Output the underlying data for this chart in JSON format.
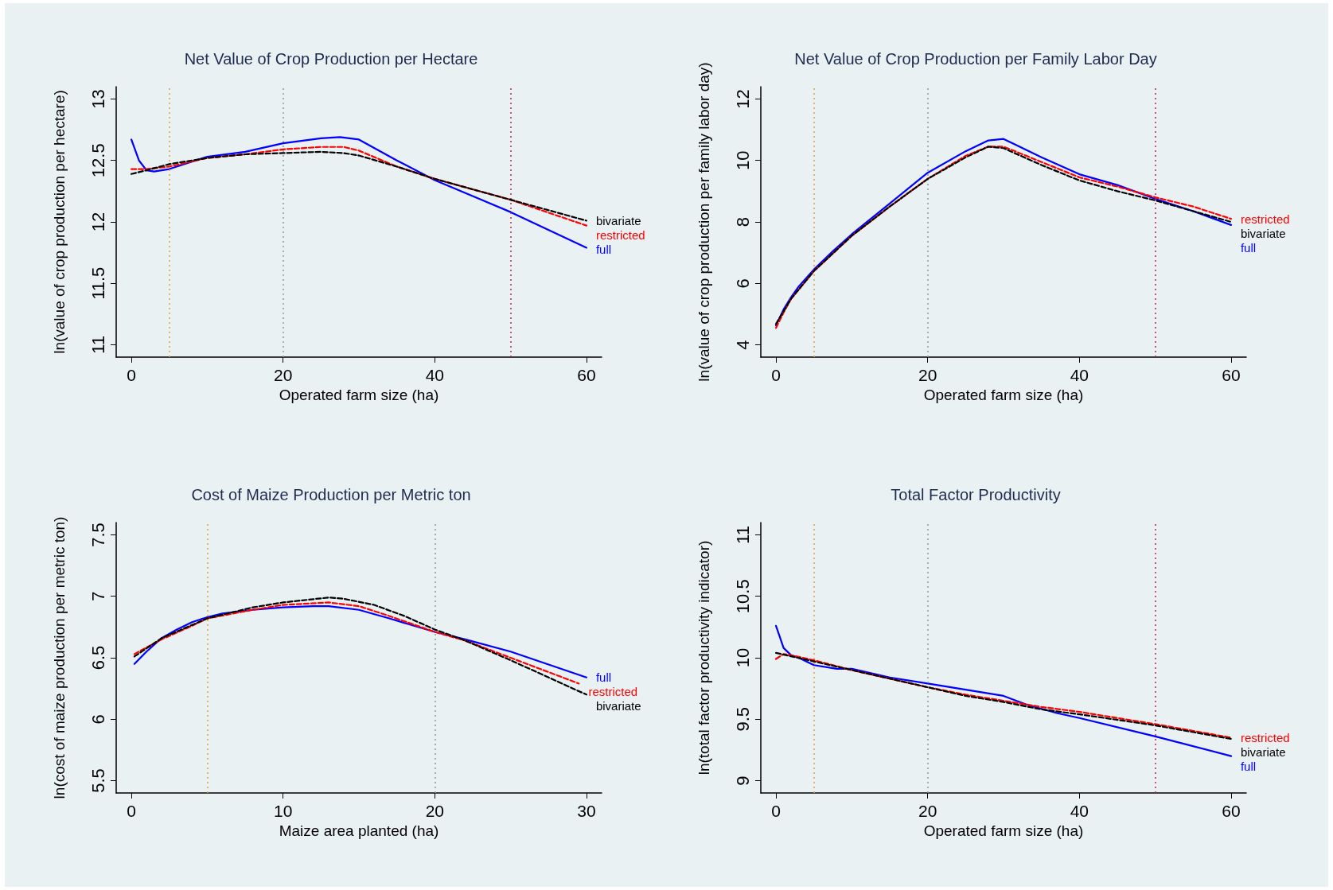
{
  "chart_data": [
    {
      "type": "line",
      "title": "Net Value of Crop Production per Hectare",
      "xlabel": "Operated farm size (ha)",
      "ylabel": "ln(value of crop production per hectare)",
      "xlim": [
        -2,
        62
      ],
      "xticks": [
        0,
        20,
        40,
        60
      ],
      "ylim": [
        10.9,
        13.1
      ],
      "yticks": [
        11,
        11.5,
        12,
        12.5,
        13
      ],
      "series": [
        {
          "name": "full",
          "color": "#0000ff",
          "line_style": "solid",
          "x": [
            0,
            1,
            2,
            3,
            5,
            8,
            10,
            15,
            20,
            25,
            27.5,
            30,
            35,
            40,
            50,
            60
          ],
          "values": [
            12.67,
            12.5,
            12.42,
            12.41,
            12.43,
            12.49,
            12.53,
            12.57,
            12.64,
            12.68,
            12.69,
            12.67,
            12.5,
            12.34,
            12.08,
            11.79
          ]
        },
        {
          "name": "restricted",
          "color": "#ff0000",
          "line_style": "dashed",
          "x": [
            0,
            2,
            5,
            10,
            15,
            20,
            25,
            28,
            30,
            35,
            40,
            50,
            60
          ],
          "values": [
            12.43,
            12.43,
            12.45,
            12.52,
            12.55,
            12.59,
            12.61,
            12.61,
            12.58,
            12.45,
            12.35,
            12.18,
            11.97
          ]
        },
        {
          "name": "bivariate",
          "color": "#000000",
          "line_style": "dashed",
          "x": [
            0,
            2,
            5,
            10,
            15,
            20,
            25,
            28,
            30,
            35,
            40,
            50,
            60
          ],
          "values": [
            12.39,
            12.42,
            12.47,
            12.52,
            12.55,
            12.56,
            12.57,
            12.56,
            12.54,
            12.45,
            12.35,
            12.18,
            12.01
          ]
        }
      ],
      "ref_lines": [
        {
          "axis": "x",
          "value": 5,
          "color": "#e8a040",
          "line_style": "dotted"
        },
        {
          "axis": "x",
          "value": 20,
          "color": "#8c9a9a",
          "line_style": "dotted"
        },
        {
          "axis": "x",
          "value": 50,
          "color": "#c0204a",
          "line_style": "dotted"
        }
      ]
    },
    {
      "type": "line",
      "title": "Net Value of Crop Production per Family Labor Day",
      "xlabel": "Operated farm size (ha)",
      "ylabel": "ln(value of crop production per family labor day)",
      "xlim": [
        -2,
        62
      ],
      "xticks": [
        0,
        20,
        40,
        60
      ],
      "ylim": [
        3.6,
        12.4
      ],
      "yticks": [
        4,
        6,
        8,
        10,
        12
      ],
      "series": [
        {
          "name": "full",
          "color": "#0000ff",
          "line_style": "solid",
          "x": [
            0,
            1,
            2,
            3,
            5,
            7.5,
            10,
            15,
            20,
            25,
            28,
            30,
            35,
            40,
            45,
            50,
            55,
            60
          ],
          "values": [
            4.63,
            5.15,
            5.55,
            5.9,
            6.45,
            7.05,
            7.6,
            8.6,
            9.6,
            10.3,
            10.65,
            10.7,
            10.1,
            9.55,
            9.2,
            8.75,
            8.35,
            7.9
          ]
        },
        {
          "name": "restricted",
          "color": "#ff0000",
          "line_style": "dashed",
          "x": [
            0,
            1,
            2,
            5,
            10,
            15,
            20,
            25,
            28,
            30,
            35,
            40,
            45,
            50,
            55,
            60
          ],
          "values": [
            4.55,
            5.05,
            5.5,
            6.4,
            7.55,
            8.5,
            9.4,
            10.15,
            10.45,
            10.45,
            9.95,
            9.45,
            9.15,
            8.8,
            8.5,
            8.1
          ]
        },
        {
          "name": "bivariate",
          "color": "#000000",
          "line_style": "dashed",
          "x": [
            0,
            2,
            5,
            10,
            15,
            20,
            25,
            28,
            30,
            35,
            40,
            45,
            50,
            55,
            60
          ],
          "values": [
            4.68,
            5.5,
            6.4,
            7.55,
            8.5,
            9.4,
            10.1,
            10.45,
            10.4,
            9.85,
            9.35,
            9.0,
            8.7,
            8.35,
            8.0
          ]
        }
      ],
      "ref_lines": [
        {
          "axis": "x",
          "value": 5,
          "color": "#e8a040",
          "line_style": "dotted"
        },
        {
          "axis": "x",
          "value": 20,
          "color": "#8c9a9a",
          "line_style": "dotted"
        },
        {
          "axis": "x",
          "value": 50,
          "color": "#c0204a",
          "line_style": "dotted"
        }
      ]
    },
    {
      "type": "line",
      "title": "Cost of Maize Production per Metric ton",
      "xlabel": "Maize area planted (ha)",
      "ylabel": "ln(cost of maize production per metric ton)",
      "xlim": [
        -1,
        31
      ],
      "xticks": [
        0,
        10,
        20,
        30
      ],
      "ylim": [
        5.4,
        7.6
      ],
      "yticks": [
        5.5,
        6,
        6.5,
        7,
        7.5
      ],
      "series": [
        {
          "name": "full",
          "color": "#0000ff",
          "line_style": "solid",
          "x": [
            0.2,
            1,
            2,
            3,
            4,
            5,
            6,
            8,
            10,
            12,
            13,
            15,
            17,
            20,
            22,
            25,
            30
          ],
          "values": [
            6.45,
            6.55,
            6.66,
            6.73,
            6.79,
            6.83,
            6.86,
            6.89,
            6.91,
            6.92,
            6.92,
            6.89,
            6.82,
            6.71,
            6.65,
            6.55,
            6.34
          ]
        },
        {
          "name": "restricted",
          "color": "#ff0000",
          "line_style": "dashed",
          "x": [
            0.2,
            2,
            4,
            5,
            8,
            10,
            13,
            15,
            17,
            20,
            22,
            25,
            29.5
          ],
          "values": [
            6.53,
            6.65,
            6.76,
            6.82,
            6.89,
            6.93,
            6.95,
            6.92,
            6.84,
            6.71,
            6.64,
            6.5,
            6.29
          ]
        },
        {
          "name": "bivariate",
          "color": "#000000",
          "line_style": "dashed",
          "x": [
            0.2,
            2,
            5,
            8,
            10,
            13,
            14,
            16,
            18,
            20,
            22,
            25,
            30
          ],
          "values": [
            6.51,
            6.66,
            6.82,
            6.91,
            6.95,
            6.99,
            6.98,
            6.93,
            6.84,
            6.73,
            6.64,
            6.48,
            6.2
          ]
        }
      ],
      "ref_lines": [
        {
          "axis": "x",
          "value": 5,
          "color": "#e8a040",
          "line_style": "dotted"
        },
        {
          "axis": "x",
          "value": 20,
          "color": "#8c9a9a",
          "line_style": "dotted"
        }
      ]
    },
    {
      "type": "line",
      "title": "Total Factor Productivity",
      "xlabel": "Operated farm size (ha)",
      "ylabel": "ln(total factor productivity indicator)",
      "xlim": [
        -2,
        62
      ],
      "xticks": [
        0,
        20,
        40,
        60
      ],
      "ylim": [
        8.9,
        11.1
      ],
      "yticks": [
        9,
        9.5,
        10,
        10.5,
        11
      ],
      "series": [
        {
          "name": "full",
          "color": "#0000ff",
          "line_style": "solid",
          "x": [
            0,
            0.5,
            1,
            2,
            3,
            5,
            8,
            10,
            15,
            20,
            25,
            30,
            33,
            37,
            40,
            50,
            60
          ],
          "values": [
            10.26,
            10.17,
            10.08,
            10.02,
            10.0,
            9.94,
            9.91,
            9.91,
            9.84,
            9.79,
            9.74,
            9.69,
            9.62,
            9.55,
            9.51,
            9.36,
            9.2
          ]
        },
        {
          "name": "restricted",
          "color": "#ff0000",
          "line_style": "dashed",
          "x": [
            0,
            1,
            2,
            5,
            10,
            15,
            20,
            25,
            30,
            35,
            40,
            50,
            60
          ],
          "values": [
            9.99,
            10.03,
            10.02,
            9.98,
            9.9,
            9.83,
            9.76,
            9.7,
            9.65,
            9.6,
            9.56,
            9.46,
            9.35
          ]
        },
        {
          "name": "bivariate",
          "color": "#000000",
          "line_style": "dashed",
          "x": [
            0,
            5,
            10,
            15,
            20,
            25,
            30,
            35,
            40,
            50,
            60
          ],
          "values": [
            10.04,
            9.97,
            9.9,
            9.83,
            9.76,
            9.69,
            9.64,
            9.58,
            9.54,
            9.45,
            9.34
          ]
        }
      ],
      "ref_lines": [
        {
          "axis": "x",
          "value": 5,
          "color": "#e8a040",
          "line_style": "dotted"
        },
        {
          "axis": "x",
          "value": 20,
          "color": "#8c9a9a",
          "line_style": "dotted"
        },
        {
          "axis": "x",
          "value": 50,
          "color": "#c0204a",
          "line_style": "dotted"
        }
      ]
    }
  ]
}
